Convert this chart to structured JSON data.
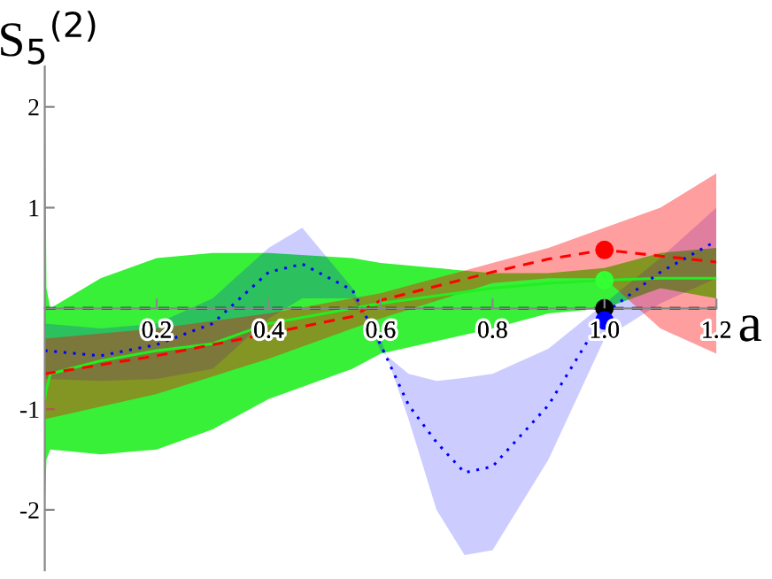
{
  "chart_data": {
    "type": "line",
    "xlabel": "a",
    "ylabel": "S$_{5}$$^{(2)}$",
    "xlim": [
      0,
      1.2
    ],
    "ylim": [
      -2.6,
      2.4
    ],
    "xticks": [
      0.2,
      0.4,
      0.6,
      0.8,
      {
        "value": 1,
        "label": "1.0"
      },
      1.2
    ],
    "yticks": [
      {
        "value": -2,
        "label": "-2"
      },
      {
        "value": -1,
        "label": "-1"
      },
      1,
      2
    ],
    "grid": false,
    "legend": false,
    "series": [
      {
        "color": "#22ee22",
        "line_style": "solid",
        "x": [
          0,
          0.003,
          0.01,
          0.1,
          0.2,
          0.3,
          0.4,
          0.55,
          0.6,
          0.8,
          0.9,
          1.0,
          1.1,
          1.2
        ],
        "values": [
          -0.9,
          -0.8,
          -0.65,
          -0.52,
          -0.42,
          -0.35,
          -0.15,
          0.0,
          0.05,
          0.2,
          0.25,
          0.28,
          0.3,
          0.3
        ],
        "upper": [
          2.3,
          0.2,
          0.0,
          0.3,
          0.5,
          0.55,
          0.55,
          0.5,
          0.45,
          0.35,
          0.35,
          0.4,
          0.55,
          0.6
        ],
        "lower": [
          -2.0,
          -1.5,
          -1.4,
          -1.45,
          -1.4,
          -1.2,
          -0.9,
          -0.6,
          -0.45,
          -0.2,
          -0.05,
          0.0,
          0.2,
          0.1
        ]
      },
      {
        "color": "#0000ff",
        "line_style": "dotted",
        "x": [
          0,
          0.1,
          0.2,
          0.3,
          0.4,
          0.46,
          0.55,
          0.6,
          0.65,
          0.7,
          0.75,
          0.8,
          0.9,
          1.0,
          1.1,
          1.2
        ],
        "values": [
          -0.42,
          -0.47,
          -0.36,
          -0.15,
          0.36,
          0.44,
          0.18,
          -0.36,
          -0.96,
          -1.33,
          -1.63,
          -1.57,
          -0.96,
          -0.05,
          0.36,
          0.67
        ],
        "upper": [
          -0.15,
          -0.2,
          -0.15,
          0.1,
          0.6,
          0.8,
          0.2,
          -0.42,
          -0.65,
          -0.72,
          -0.69,
          -0.65,
          -0.4,
          0.05,
          0.5,
          1.0
        ],
        "lower": [
          -0.7,
          -0.72,
          -0.7,
          -0.6,
          -0.1,
          0.1,
          0.1,
          -0.3,
          -1.1,
          -2.0,
          -2.45,
          -2.4,
          -1.5,
          -0.3,
          0.05,
          0.3
        ]
      },
      {
        "color": "#ff0000",
        "line_style": "dashed",
        "x": [
          0,
          0.2,
          0.4,
          0.55,
          0.6,
          0.8,
          0.9,
          1.0,
          1.1,
          1.2
        ],
        "values": [
          -0.65,
          -0.47,
          -0.25,
          -0.08,
          0.08,
          0.36,
          0.49,
          0.58,
          0.52,
          0.46
        ],
        "upper": [
          -0.3,
          -0.2,
          -0.05,
          0.1,
          0.15,
          0.45,
          0.6,
          0.8,
          1.0,
          1.34
        ],
        "lower": [
          -1.1,
          -0.85,
          -0.5,
          -0.2,
          -0.1,
          0.25,
          0.3,
          0.3,
          -0.2,
          -0.45
        ]
      },
      {
        "color": "#000000",
        "line_style": "dashed",
        "x": [
          0,
          1.2
        ],
        "values": [
          0,
          0
        ]
      },
      {
        "type": "scatter",
        "marker": "circle",
        "x": [
          1.0,
          1.0,
          1.0,
          1.0
        ],
        "values": [
          0.58,
          0.28,
          0,
          -0.12
        ],
        "colors": [
          "#ff0000",
          "#33ff33",
          "#000000",
          "#0000ff"
        ]
      }
    ]
  }
}
